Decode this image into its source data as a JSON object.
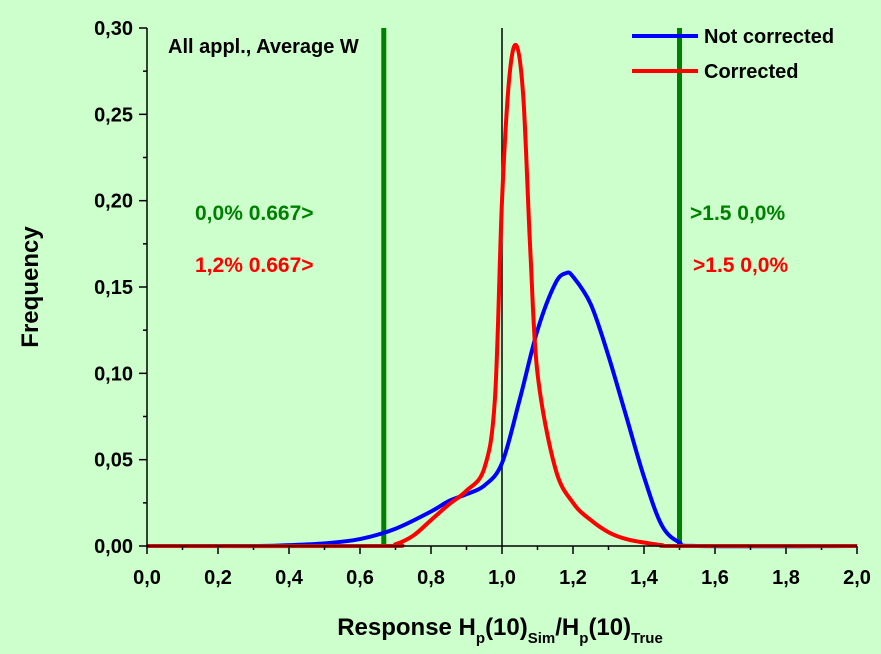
{
  "chart_data": {
    "type": "line",
    "title": "All appl., Average W",
    "xlabel": {
      "main": "Response H",
      "parts": [
        {
          "text": "p",
          "sub": true
        },
        {
          "text": "(10)",
          "sub": false
        },
        {
          "text": "Sim",
          "sub": true
        },
        {
          "text": "/H",
          "sub": false
        },
        {
          "text": "p",
          "sub": true
        },
        {
          "text": "(10)",
          "sub": false
        },
        {
          "text": "True",
          "sub": true
        }
      ]
    },
    "ylabel": "Frequency",
    "xlim": [
      0.0,
      2.0
    ],
    "ylim": [
      0.0,
      0.3
    ],
    "x_ticks": [
      "0,0",
      "0,2",
      "0,4",
      "0,6",
      "0,8",
      "1,0",
      "1,2",
      "1,4",
      "1,6",
      "1,8",
      "2,0"
    ],
    "x_tick_values": [
      0.0,
      0.2,
      0.4,
      0.6,
      0.8,
      1.0,
      1.2,
      1.4,
      1.6,
      1.8,
      2.0
    ],
    "y_ticks": [
      "0,00",
      "0,05",
      "0,10",
      "0,15",
      "0,20",
      "0,25",
      "0,30"
    ],
    "y_tick_values": [
      0.0,
      0.05,
      0.1,
      0.15,
      0.2,
      0.25,
      0.3
    ],
    "grid": false,
    "legend_position": "top-right",
    "colors": {
      "background": "#ccffcc",
      "limit_lines": "#008000",
      "reference_line": "#000000"
    },
    "vertical_lines": [
      {
        "x": 0.667,
        "color": "#008000"
      },
      {
        "x": 1.0,
        "color": "#000000"
      },
      {
        "x": 1.5,
        "color": "#008000"
      }
    ],
    "annotations": [
      {
        "text": "0,0% 0.667>",
        "color": "#008000"
      },
      {
        "text": "1,2% 0.667>",
        "color": "#ff0000"
      },
      {
        "text": ">1.5 0,0%",
        "color": "#008000"
      },
      {
        "text": ">1.5 0,0%",
        "color": "#ff0000"
      }
    ],
    "series": [
      {
        "name": "Not corrected",
        "color": "#0000ff",
        "x": [
          0.0,
          0.3,
          0.4,
          0.5,
          0.6,
          0.7,
          0.8,
          0.85,
          0.9,
          0.95,
          1.0,
          1.05,
          1.1,
          1.15,
          1.18,
          1.2,
          1.25,
          1.3,
          1.35,
          1.4,
          1.45,
          1.5,
          1.55,
          2.0
        ],
        "y": [
          0.0,
          0.0,
          0.0005,
          0.0015,
          0.004,
          0.01,
          0.02,
          0.026,
          0.03,
          0.035,
          0.048,
          0.085,
          0.125,
          0.152,
          0.158,
          0.156,
          0.14,
          0.11,
          0.075,
          0.04,
          0.012,
          0.002,
          0.0,
          0.0
        ]
      },
      {
        "name": "Corrected",
        "color": "#ff0000",
        "x": [
          0.0,
          0.66,
          0.7,
          0.75,
          0.8,
          0.85,
          0.9,
          0.95,
          0.98,
          1.0,
          1.02,
          1.04,
          1.06,
          1.08,
          1.1,
          1.15,
          1.2,
          1.25,
          1.3,
          1.35,
          1.4,
          1.45,
          1.5,
          2.0
        ],
        "y": [
          0.0,
          0.0,
          0.001,
          0.006,
          0.015,
          0.024,
          0.032,
          0.045,
          0.085,
          0.2,
          0.27,
          0.29,
          0.26,
          0.17,
          0.1,
          0.045,
          0.025,
          0.015,
          0.008,
          0.004,
          0.002,
          0.0005,
          0.0,
          0.0
        ]
      }
    ]
  }
}
